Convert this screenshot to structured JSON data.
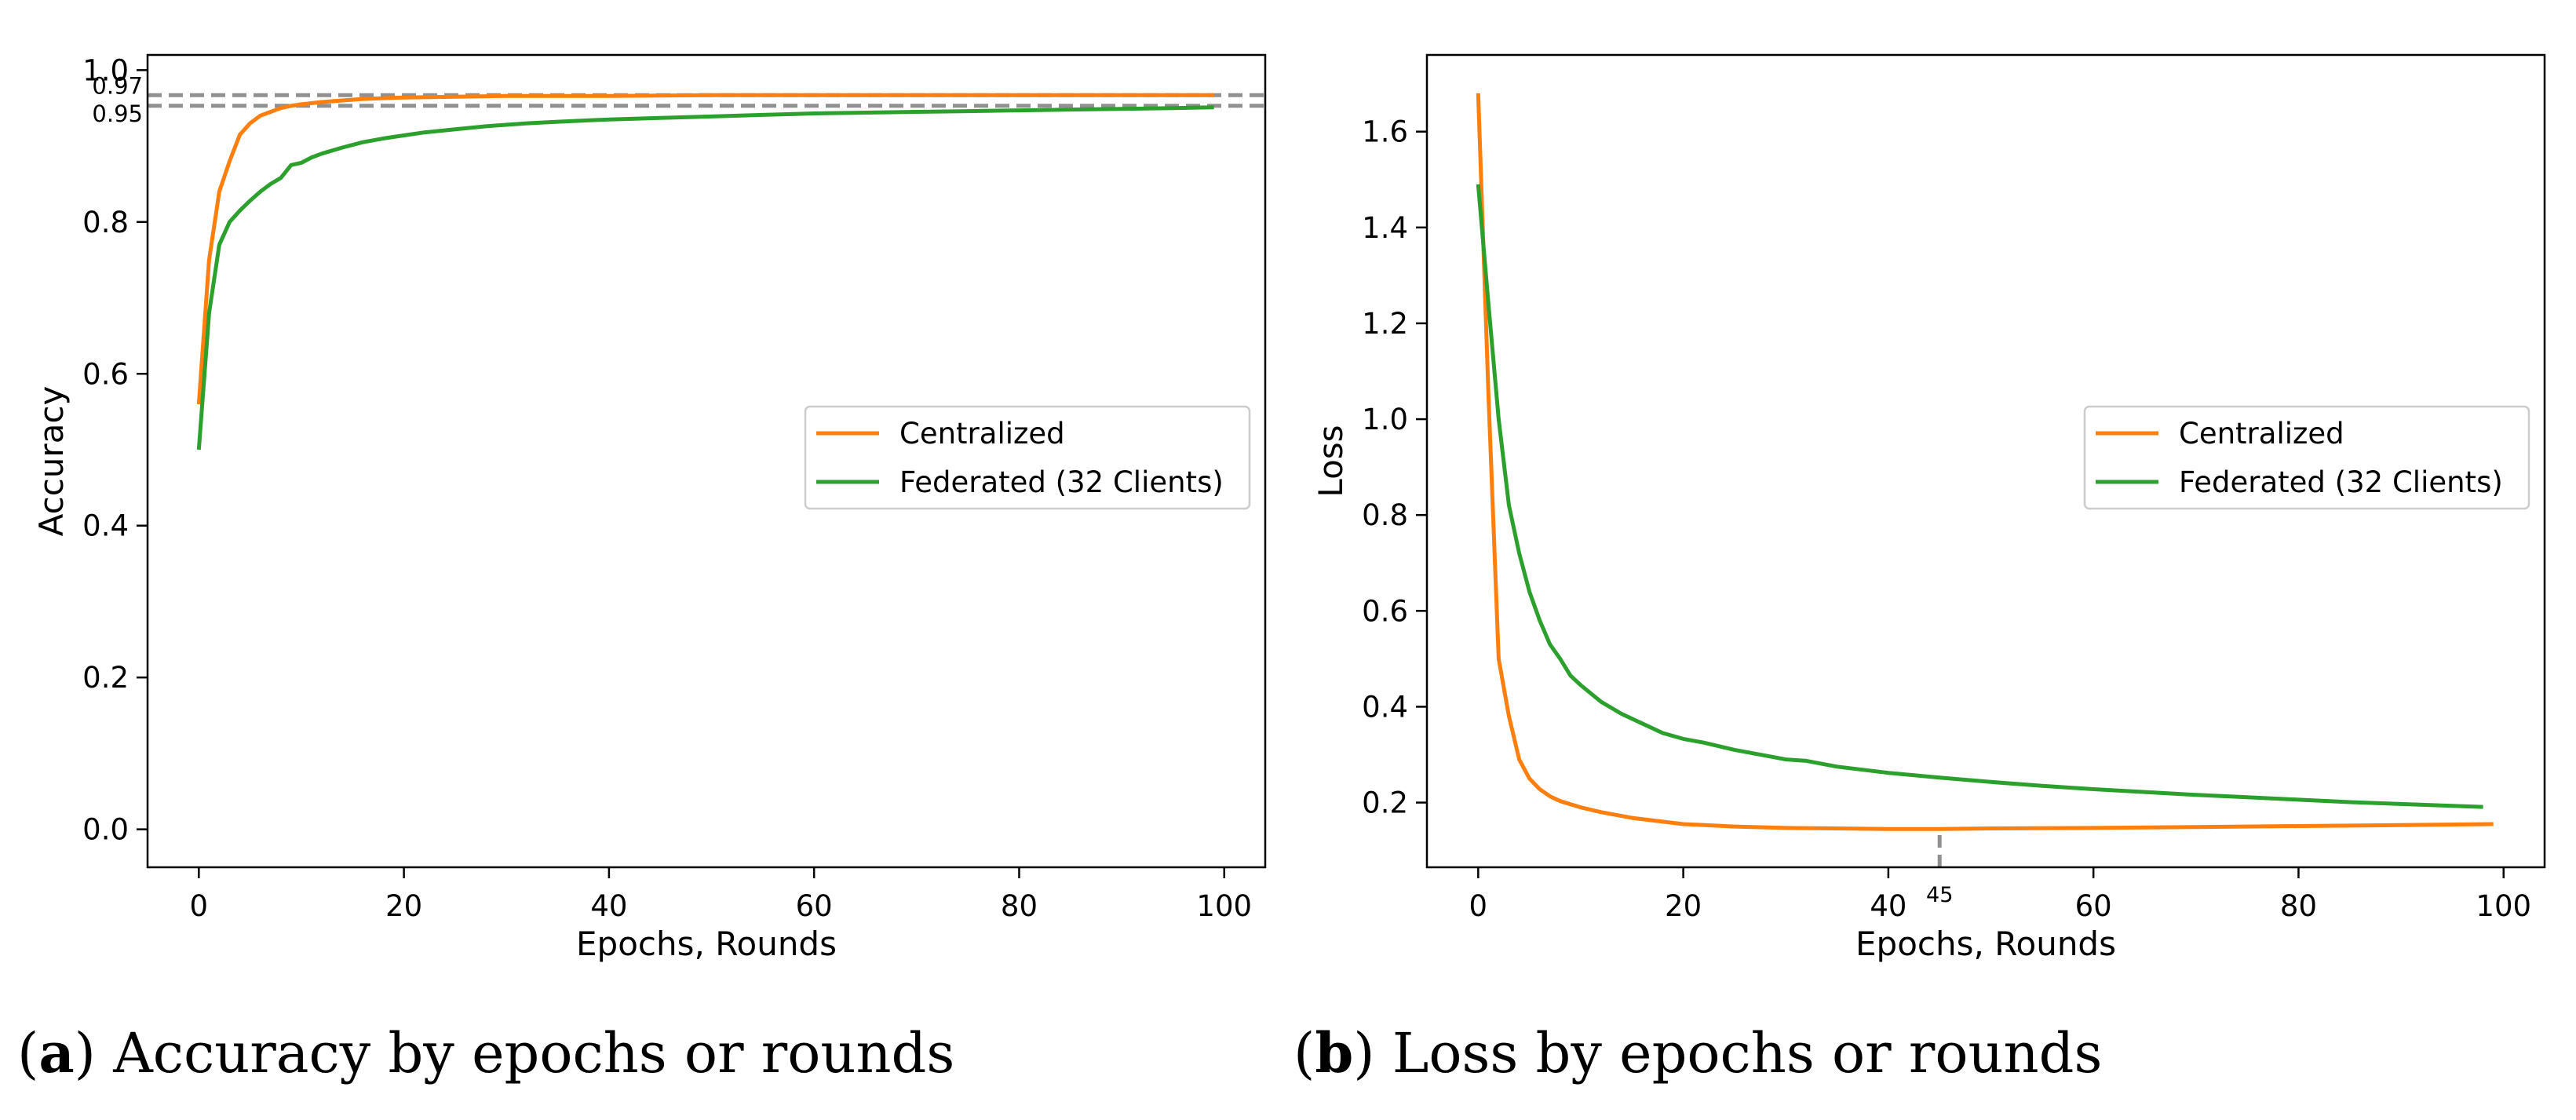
{
  "chart_data": [
    {
      "type": "line",
      "panel": "a",
      "xlabel": "Epochs, Rounds",
      "ylabel": "Accuracy",
      "xlim": [
        -5,
        104
      ],
      "ylim": [
        -0.05,
        1.02
      ],
      "xticks": [
        0,
        20,
        40,
        60,
        80,
        100
      ],
      "xtick_labels": [
        "0",
        "20",
        "40",
        "60",
        "80",
        "100"
      ],
      "yticks": [
        0.0,
        0.2,
        0.4,
        0.6,
        0.8,
        1.0
      ],
      "ytick_labels": [
        "0.0",
        "0.2",
        "0.4",
        "0.6",
        "0.8",
        "1.0"
      ],
      "legend": {
        "position": "center-right",
        "entries": [
          "Centralized",
          "Federated (32 Clients)"
        ]
      },
      "reference_lines": [
        {
          "axis": "y",
          "value": 0.967,
          "label": "0.97",
          "style": "dashed"
        },
        {
          "axis": "y",
          "value": 0.953,
          "label": "0.95",
          "style": "dashed"
        }
      ],
      "series": [
        {
          "name": "Centralized",
          "color": "#ff7f0e",
          "x": [
            0,
            1,
            2,
            3,
            4,
            5,
            6,
            7,
            8,
            9,
            10,
            12,
            14,
            16,
            18,
            20,
            25,
            30,
            40,
            50,
            60,
            70,
            80,
            90,
            99
          ],
          "y": [
            0.56,
            0.75,
            0.84,
            0.88,
            0.915,
            0.93,
            0.94,
            0.945,
            0.95,
            0.953,
            0.955,
            0.958,
            0.96,
            0.962,
            0.963,
            0.964,
            0.965,
            0.966,
            0.966,
            0.967,
            0.967,
            0.967,
            0.967,
            0.967,
            0.967
          ]
        },
        {
          "name": "Federated (32 Clients)",
          "color": "#2ca02c",
          "x": [
            0,
            1,
            2,
            3,
            4,
            5,
            6,
            7,
            8,
            9,
            10,
            11,
            12,
            14,
            16,
            18,
            20,
            22,
            25,
            28,
            30,
            32,
            35,
            40,
            45,
            50,
            55,
            60,
            65,
            70,
            75,
            80,
            85,
            90,
            95,
            99
          ],
          "y": [
            0.5,
            0.68,
            0.77,
            0.8,
            0.815,
            0.828,
            0.84,
            0.85,
            0.858,
            0.875,
            0.878,
            0.885,
            0.89,
            0.898,
            0.905,
            0.91,
            0.914,
            0.918,
            0.922,
            0.926,
            0.928,
            0.93,
            0.932,
            0.935,
            0.937,
            0.939,
            0.941,
            0.943,
            0.944,
            0.945,
            0.946,
            0.947,
            0.948,
            0.949,
            0.95,
            0.951
          ]
        }
      ]
    },
    {
      "type": "line",
      "panel": "b",
      "xlabel": "Epochs, Rounds",
      "ylabel": "Loss",
      "xlim": [
        -5,
        104
      ],
      "ylim": [
        0.065,
        1.76
      ],
      "xticks": [
        0,
        20,
        40,
        60,
        80,
        100
      ],
      "xtick_labels": [
        "0",
        "20",
        "40",
        "60",
        "80",
        "100"
      ],
      "yticks": [
        0.2,
        0.4,
        0.6,
        0.8,
        1.0,
        1.2,
        1.4,
        1.6
      ],
      "ytick_labels": [
        "0.2",
        "0.4",
        "0.6",
        "0.8",
        "1.0",
        "1.2",
        "1.4",
        "1.6"
      ],
      "legend": {
        "position": "center-right",
        "entries": [
          "Centralized",
          "Federated (32 Clients)"
        ]
      },
      "reference_lines": [
        {
          "axis": "x",
          "value": 45,
          "label": "45",
          "style": "dashed",
          "from_y": 0.065,
          "to_y": 0.145
        }
      ],
      "series": [
        {
          "name": "Centralized",
          "color": "#ff7f0e",
          "x": [
            0,
            1,
            2,
            3,
            4,
            5,
            6,
            7,
            8,
            10,
            12,
            15,
            20,
            25,
            30,
            35,
            40,
            45,
            50,
            60,
            70,
            80,
            90,
            99
          ],
          "y": [
            1.68,
            1.05,
            0.5,
            0.38,
            0.29,
            0.25,
            0.228,
            0.213,
            0.203,
            0.19,
            0.18,
            0.168,
            0.155,
            0.15,
            0.147,
            0.146,
            0.145,
            0.145,
            0.146,
            0.147,
            0.149,
            0.151,
            0.153,
            0.155
          ]
        },
        {
          "name": "Federated (32 Clients)",
          "color": "#2ca02c",
          "x": [
            0,
            1,
            2,
            3,
            4,
            5,
            6,
            7,
            8,
            9,
            10,
            12,
            14,
            16,
            18,
            20,
            22,
            25,
            28,
            30,
            32,
            35,
            40,
            45,
            50,
            55,
            60,
            65,
            70,
            75,
            80,
            85,
            90,
            95,
            98
          ],
          "y": [
            1.49,
            1.24,
            1.0,
            0.82,
            0.72,
            0.64,
            0.58,
            0.53,
            0.5,
            0.465,
            0.445,
            0.41,
            0.385,
            0.365,
            0.345,
            0.333,
            0.325,
            0.31,
            0.298,
            0.29,
            0.287,
            0.275,
            0.262,
            0.252,
            0.243,
            0.235,
            0.228,
            0.222,
            0.216,
            0.211,
            0.206,
            0.201,
            0.197,
            0.193,
            0.191
          ]
        }
      ]
    }
  ],
  "captions": {
    "a": {
      "letter": "a",
      "text": " Accuracy by epochs or rounds"
    },
    "b": {
      "letter": "b",
      "text": " Loss by epochs or rounds"
    }
  }
}
